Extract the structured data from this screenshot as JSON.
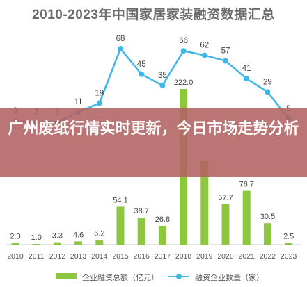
{
  "chart_data": {
    "type": "bar",
    "title": "2010-2023年中国家居家装融资数据汇总",
    "categories": [
      "2010",
      "2011",
      "2012",
      "2013",
      "2014",
      "2015",
      "2016",
      "2017",
      "2018",
      "2019",
      "2020",
      "2021",
      "2022",
      "2023"
    ],
    "series": [
      {
        "name": "企业融资总额（亿元）",
        "type": "bar",
        "values": [
          2.3,
          1.0,
          3.3,
          4.6,
          6.2,
          54.1,
          38.7,
          26.8,
          222.0,
          120,
          57.7,
          76.7,
          30.5,
          2.5
        ],
        "labels": [
          "2.3",
          "1.0",
          "3.3",
          "4.6",
          "6.2",
          "54.1",
          "38.7",
          "26.8",
          "222.0",
          "",
          "57.7",
          "76.7",
          "30.5",
          "2.5"
        ],
        "color": "#8dc63f"
      },
      {
        "name": "融资企业数量（家）",
        "type": "line",
        "values": [
          3,
          2,
          2,
          11,
          19,
          68,
          45,
          35,
          66,
          62,
          57,
          41,
          29,
          5
        ],
        "labels": [
          "3",
          "2",
          "2",
          "11",
          "19",
          "68",
          "45",
          "35",
          "66",
          "62",
          "57",
          "41",
          "29",
          "5"
        ],
        "color": "#3fb5e8"
      }
    ],
    "ylim_bar": [
      0,
      240
    ],
    "ylim_line": [
      0,
      100
    ]
  },
  "overlay": {
    "text": "广州废纸行情实时更新，今日市场走势分析"
  }
}
